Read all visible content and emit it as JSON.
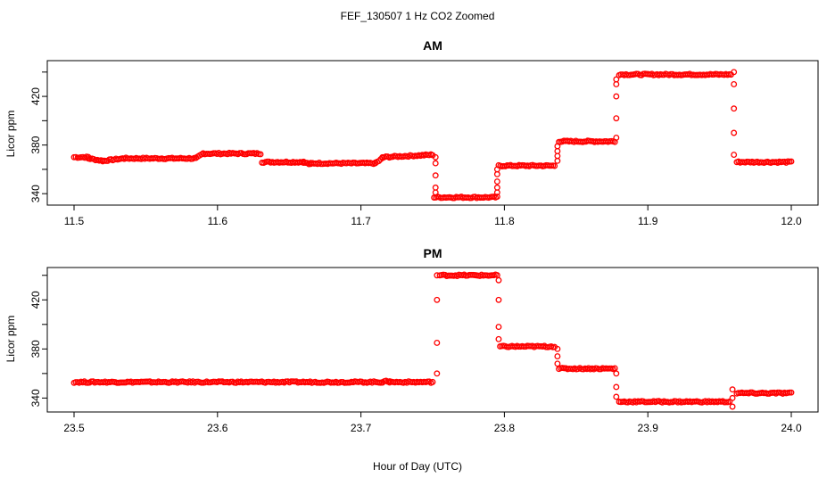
{
  "figure": {
    "title": "FEF_130507  1 Hz CO2 Zoomed",
    "xlabel": "Hour of Day (UTC)"
  },
  "colors": {
    "marker": "#ff0000",
    "axis": "#000000",
    "background": "#ffffff"
  },
  "chart_data": [
    {
      "type": "scatter",
      "title": "AM",
      "xlabel": "Hour of Day (UTC)",
      "ylabel": "Licor ppm",
      "xlim": [
        11.5,
        12.0
      ],
      "ylim": [
        335,
        445
      ],
      "xticks": [
        "11.5",
        "11.6",
        "11.7",
        "11.8",
        "11.9",
        "12.0"
      ],
      "yticks": [
        "340",
        "380",
        "420"
      ],
      "grid": false,
      "legend": "none",
      "series": [
        {
          "marker": "open-circle",
          "steps": [
            {
              "x": [
                11.5,
                11.51
              ],
              "y": [
                370,
                370
              ]
            },
            {
              "x": [
                11.51,
                11.52
              ],
              "y": [
                369,
                367
              ]
            },
            {
              "x": [
                11.52,
                11.535
              ],
              "y": [
                367,
                369
              ]
            },
            {
              "x": [
                11.535,
                11.585
              ],
              "y": [
                369,
                369
              ]
            },
            {
              "x": [
                11.585,
                11.59
              ],
              "y": [
                369,
                373
              ]
            },
            {
              "x": [
                11.59,
                11.63
              ],
              "y": [
                373,
                373
              ]
            },
            {
              "x": [
                11.631,
                11.66
              ],
              "y": [
                366,
                366
              ]
            },
            {
              "x": [
                11.66,
                11.665
              ],
              "y": [
                366,
                364
              ]
            },
            {
              "x": [
                11.665,
                11.71
              ],
              "y": [
                365,
                365
              ]
            },
            {
              "x": [
                11.71,
                11.715
              ],
              "y": [
                365,
                369
              ]
            },
            {
              "x": [
                11.715,
                11.75
              ],
              "y": [
                370,
                372
              ]
            },
            {
              "x": [
                11.751,
                11.795
              ],
              "y": [
                337,
                337
              ]
            },
            {
              "x": [
                11.796,
                11.835
              ],
              "y": [
                363,
                363
              ]
            },
            {
              "x": [
                11.838,
                11.877
              ],
              "y": [
                383,
                383
              ]
            },
            {
              "x": [
                11.88,
                11.958
              ],
              "y": [
                438,
                438
              ]
            },
            {
              "x": [
                11.962,
                12.0
              ],
              "y": [
                366,
                366
              ]
            }
          ],
          "transitions": [
            {
              "x": 11.752,
              "y": [
                370,
                365,
                355,
                345,
                341
              ]
            },
            {
              "x": 11.795,
              "y": [
                341,
                345,
                350,
                356,
                360
              ]
            },
            {
              "x": 11.837,
              "y": [
                367,
                371,
                375,
                379
              ]
            },
            {
              "x": 11.878,
              "y": [
                386,
                402,
                420,
                430,
                434
              ]
            },
            {
              "x": 11.96,
              "y": [
                440,
                430,
                410,
                390,
                372
              ]
            }
          ]
        }
      ]
    },
    {
      "type": "scatter",
      "title": "PM",
      "xlabel": "Hour of Day (UTC)",
      "ylabel": "Licor ppm",
      "xlim": [
        23.5,
        24.0
      ],
      "ylim": [
        333,
        442
      ],
      "xticks": [
        "23.5",
        "23.6",
        "23.7",
        "23.8",
        "23.9",
        "24.0"
      ],
      "yticks": [
        "340",
        "380",
        "420"
      ],
      "grid": false,
      "legend": "none",
      "series": [
        {
          "marker": "open-circle",
          "steps": [
            {
              "x": [
                23.5,
                23.715
              ],
              "y": [
                353,
                353
              ]
            },
            {
              "x": [
                23.715,
                23.72
              ],
              "y": [
                353,
                354
              ]
            },
            {
              "x": [
                23.72,
                23.75
              ],
              "y": [
                353,
                353
              ]
            },
            {
              "x": [
                23.755,
                23.795
              ],
              "y": [
                440,
                440
              ]
            },
            {
              "x": [
                23.797,
                23.835
              ],
              "y": [
                382,
                382
              ]
            },
            {
              "x": [
                23.838,
                23.877
              ],
              "y": [
                364,
                364
              ]
            },
            {
              "x": [
                23.88,
                23.957
              ],
              "y": [
                337,
                337
              ]
            },
            {
              "x": [
                23.962,
                24.0
              ],
              "y": [
                344,
                344
              ]
            }
          ],
          "transitions": [
            {
              "x": 23.753,
              "y": [
                360,
                385,
                420,
                440
              ]
            },
            {
              "x": 23.796,
              "y": [
                436,
                420,
                398,
                388
              ]
            },
            {
              "x": 23.837,
              "y": [
                380,
                374,
                368
              ]
            },
            {
              "x": 23.878,
              "y": [
                360,
                349,
                341
              ]
            },
            {
              "x": 23.959,
              "y": [
                333,
                340,
                347
              ]
            }
          ]
        }
      ]
    }
  ]
}
